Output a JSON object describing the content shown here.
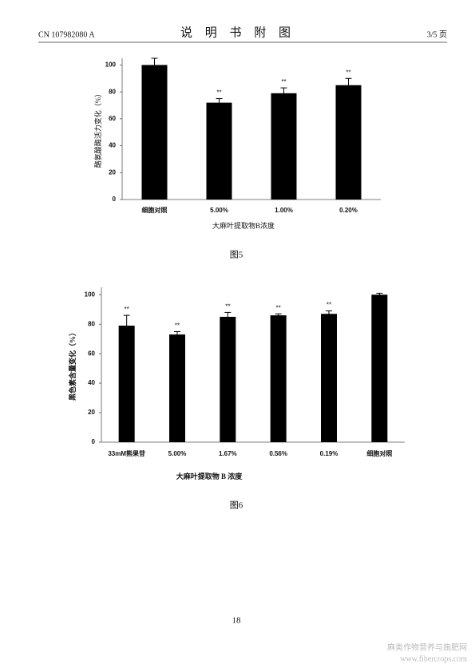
{
  "header": {
    "left": "CN 107982080 A",
    "title": "说 明 书 附 图",
    "right": "3/5 页"
  },
  "chart_data": [
    {
      "type": "bar",
      "caption": "图5",
      "y_label": "酪氨酸酶活力变化（%）",
      "x_label": "大麻叶提取物B浓度",
      "categories": [
        "细胞对照",
        "5.00%",
        "1.00%",
        "0.20%"
      ],
      "values": [
        100,
        72,
        79,
        85
      ],
      "errors": [
        5,
        3,
        4,
        5
      ],
      "significance": [
        null,
        "**",
        "**",
        "**"
      ],
      "color": "#000000",
      "ylim": [
        0,
        105
      ],
      "yticks": [
        0,
        20,
        40,
        60,
        80,
        100
      ],
      "grid": false
    },
    {
      "type": "bar",
      "caption": "图6",
      "y_label": "黑色素含量变化（%）",
      "x_label": "大麻叶提取物 B 浓度",
      "categories": [
        "33mM熊果苷",
        "5.00%",
        "1.67%",
        "0.56%",
        "0.19%",
        "细胞对照"
      ],
      "values": [
        79,
        73,
        85,
        86,
        87,
        100
      ],
      "errors": [
        7,
        2,
        3,
        1,
        2,
        1
      ],
      "significance": [
        "**",
        "**",
        "**",
        "**",
        "**",
        null
      ],
      "color": "#000000",
      "ylim": [
        0,
        105
      ],
      "yticks": [
        0,
        20,
        40,
        60,
        80,
        100
      ],
      "grid": false
    }
  ],
  "page_number": "18",
  "watermark": {
    "line1": "麻类作物营养与施肥网",
    "line2": "www.fibercrops.com"
  }
}
